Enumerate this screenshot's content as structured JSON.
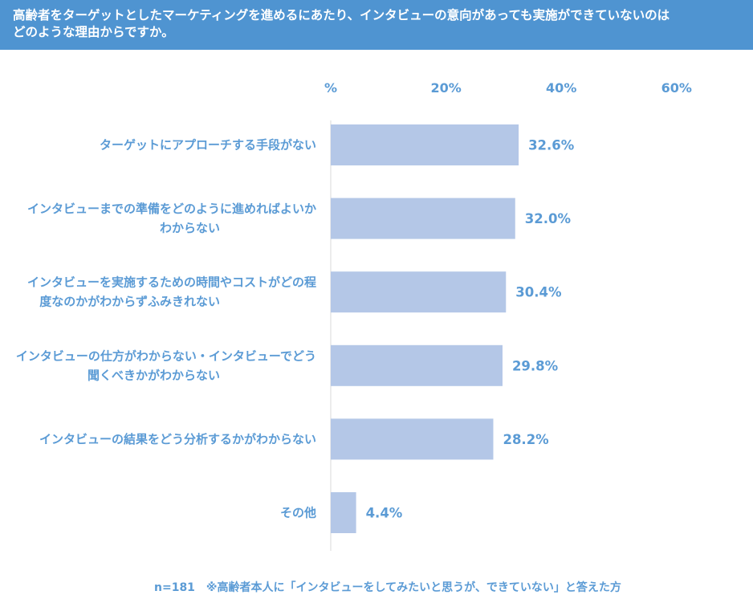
{
  "header": {
    "title": "高齢者をターゲットとしたマーケティングを進めるにあたり、インタビューの意向があっても実施ができていないのは\nどのような理由からですか。"
  },
  "chart_data": {
    "type": "bar",
    "orientation": "horizontal",
    "categories": [
      "ターゲットにアプローチする手段がない",
      "インタビューまでの準備をどのように進めればよいか\nわからない",
      "インタビューを実施するための時間やコストがどの程\n度なのかがわからずふみきれない",
      "インタビューの仕方がわからない・インタビューでどう\n聞くべきかがわからない",
      "インタビューの結果をどう分析するかがわからない",
      "その他"
    ],
    "values": [
      32.6,
      32.0,
      30.4,
      29.8,
      28.2,
      4.4
    ],
    "value_labels": [
      "32.6%",
      "32.0%",
      "30.4%",
      "29.8%",
      "28.2%",
      "4.4%"
    ],
    "x_ticks": [
      "%",
      "20%",
      "40%",
      "60%"
    ],
    "xlim": [
      0,
      60
    ],
    "axis_position": "top",
    "grid": false,
    "legend": "none",
    "colors": {
      "bar": "#b4c7e7",
      "text": "#5b9bd5",
      "header_bg": "#4f94d1"
    }
  },
  "footnote": "n=181　※高齢者本人に「インタビューをしてみたいと思うが、できていない」と答えた方"
}
